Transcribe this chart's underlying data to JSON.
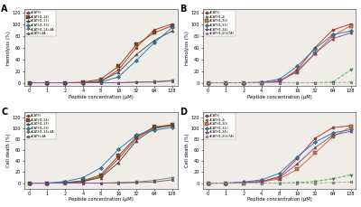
{
  "x_ticks": [
    0,
    1,
    2,
    4,
    8,
    16,
    32,
    64,
    128
  ],
  "x_tick_labels": [
    "0",
    "1",
    "2",
    "4",
    "8",
    "16",
    "32",
    "64",
    "128"
  ],
  "bg_color": "#f0ede8",
  "panel_A": {
    "title": "A",
    "ylabel": "Hemolysis (%)",
    "xlabel": "Peptide concentration (μM)",
    "ylim": [
      -5,
      125
    ],
    "yticks": [
      0,
      20,
      40,
      60,
      80,
      100,
      120
    ],
    "series": [
      {
        "label": "dCATH",
        "color": "#c0392b",
        "marker": "o",
        "ls": "-",
        "data": [
          0,
          0,
          0,
          0,
          2,
          22,
          60,
          90,
          100
        ]
      },
      {
        "label": "dCATH1-14i",
        "color": "#8B4513",
        "marker": "s",
        "ls": "-",
        "data": [
          0,
          0,
          0,
          1,
          6,
          28,
          65,
          85,
          97
        ]
      },
      {
        "label": "dCATH1-17i",
        "color": "#555555",
        "marker": "^",
        "ls": "-",
        "data": [
          0,
          0,
          0,
          0,
          3,
          18,
          48,
          72,
          88
        ]
      },
      {
        "label": "dCATH1-33i",
        "color": "#2980b9",
        "marker": "D",
        "ls": "-",
        "data": [
          0,
          0,
          0,
          0,
          1,
          10,
          38,
          68,
          94
        ]
      },
      {
        "label": "dCATH1-14i-4A",
        "color": "#4daf4a",
        "marker": "v",
        "ls": "-",
        "data": [
          0,
          0,
          0,
          0,
          0,
          0,
          1,
          2,
          4
        ]
      },
      {
        "label": "dCATH-4A",
        "color": "#984ea3",
        "marker": "p",
        "ls": "-",
        "data": [
          0,
          0,
          0,
          0,
          0,
          0,
          1,
          1,
          3
        ]
      }
    ]
  },
  "panel_B": {
    "title": "B",
    "ylabel": "Hemolysis (%)",
    "xlabel": "Peptide concentration (μM)",
    "ylim": [
      -5,
      125
    ],
    "yticks": [
      0,
      20,
      40,
      60,
      80,
      100,
      120
    ],
    "series": [
      {
        "label": "dCATH",
        "color": "#c0392b",
        "marker": "o",
        "ls": "-",
        "data": [
          0,
          0,
          0,
          0,
          2,
          22,
          60,
          90,
          100
        ]
      },
      {
        "label": "dCATH1-2i",
        "color": "#4daf4a",
        "marker": "v",
        "ls": "--",
        "data": [
          0,
          0,
          0,
          0,
          0,
          0,
          0,
          1,
          22
        ]
      },
      {
        "label": "dCATH1-30i",
        "color": "#e07030",
        "marker": "s",
        "ls": "-",
        "data": [
          0,
          0,
          0,
          0,
          4,
          18,
          50,
          80,
          97
        ]
      },
      {
        "label": "dCATH1-31i",
        "color": "#2980b9",
        "marker": "D",
        "ls": "-",
        "data": [
          0,
          0,
          0,
          1,
          6,
          28,
          58,
          82,
          88
        ]
      },
      {
        "label": "dCATH1-34i",
        "color": "#984ea3",
        "marker": "^",
        "ls": "-",
        "data": [
          0,
          0,
          0,
          0,
          2,
          20,
          50,
          75,
          85
        ]
      },
      {
        "label": "dCATH1-20i(7A)",
        "color": "#aaaaaa",
        "marker": "p",
        "ls": "--",
        "data": [
          0,
          0,
          0,
          0,
          0,
          0,
          0,
          0,
          1
        ]
      }
    ]
  },
  "panel_C": {
    "title": "C",
    "ylabel": "Cell death (%)",
    "xlabel": "Peptide concentration (μM)",
    "ylim": [
      -10,
      130
    ],
    "yticks": [
      0,
      20,
      40,
      60,
      80,
      100,
      120
    ],
    "series": [
      {
        "label": "dCATH",
        "color": "#c0392b",
        "marker": "o",
        "ls": "-",
        "data": [
          0,
          0,
          1,
          3,
          12,
          45,
          82,
          102,
          105
        ]
      },
      {
        "label": "dCATH1-14i",
        "color": "#8B4513",
        "marker": "s",
        "ls": "-",
        "data": [
          0,
          0,
          1,
          4,
          15,
          50,
          85,
          103,
          107
        ]
      },
      {
        "label": "dCATH1-17i",
        "color": "#555555",
        "marker": "^",
        "ls": "-",
        "data": [
          0,
          0,
          1,
          3,
          10,
          38,
          78,
          100,
          106
        ]
      },
      {
        "label": "dCATH1-33i",
        "color": "#2980b9",
        "marker": "D",
        "ls": "-",
        "data": [
          0,
          0,
          3,
          10,
          28,
          62,
          88,
          97,
          102
        ]
      },
      {
        "label": "dCATH1-14i-4A",
        "color": "#4daf4a",
        "marker": "v",
        "ls": "-",
        "data": [
          0,
          0,
          0,
          0,
          0,
          1,
          2,
          5,
          10
        ]
      },
      {
        "label": "dCATH-4A",
        "color": "#984ea3",
        "marker": "p",
        "ls": "-",
        "data": [
          0,
          0,
          0,
          0,
          0,
          0,
          1,
          2,
          6
        ]
      }
    ]
  },
  "panel_D": {
    "title": "D",
    "ylabel": "Cell death (%)",
    "xlabel": "Peptide concentration (μM)",
    "ylim": [
      -10,
      130
    ],
    "yticks": [
      0,
      20,
      40,
      60,
      80,
      100,
      120
    ],
    "series": [
      {
        "label": "dCATH",
        "color": "#c0392b",
        "marker": "o",
        "ls": "-",
        "data": [
          0,
          0,
          1,
          3,
          12,
          45,
          82,
          102,
          105
        ]
      },
      {
        "label": "dCATH1-2i",
        "color": "#4daf4a",
        "marker": "v",
        "ls": "--",
        "data": [
          0,
          0,
          0,
          0,
          0,
          1,
          3,
          8,
          15
        ]
      },
      {
        "label": "dCATH1-30i",
        "color": "#e07030",
        "marker": "s",
        "ls": "-",
        "data": [
          0,
          0,
          0,
          2,
          8,
          25,
          55,
          85,
          103
        ]
      },
      {
        "label": "dCATH1-31i",
        "color": "#2980b9",
        "marker": "D",
        "ls": "-",
        "data": [
          0,
          0,
          2,
          6,
          18,
          48,
          75,
          92,
          98
        ]
      },
      {
        "label": "dCATH1-34i",
        "color": "#984ea3",
        "marker": "^",
        "ls": "-",
        "data": [
          0,
          0,
          1,
          3,
          10,
          35,
          65,
          88,
          95
        ]
      },
      {
        "label": "dCATH1-20i(7A)",
        "color": "#aaaaaa",
        "marker": "p",
        "ls": "--",
        "data": [
          0,
          0,
          0,
          0,
          0,
          0,
          0,
          1,
          2
        ]
      }
    ]
  }
}
